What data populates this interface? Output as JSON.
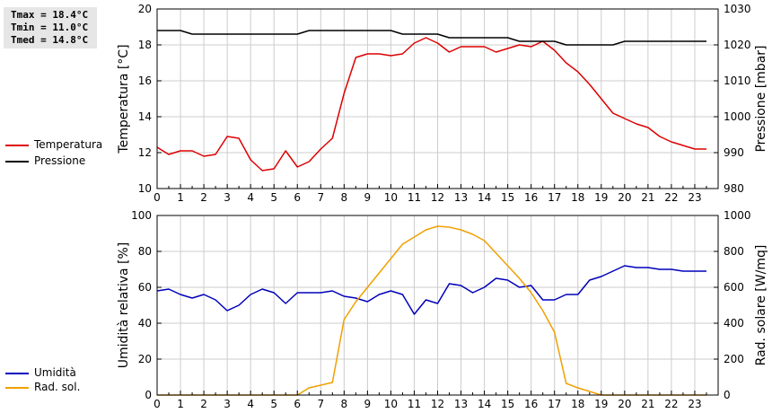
{
  "stats": {
    "tmax": "Tmax = 18.4°C",
    "tmin": "Tmin = 11.0°C",
    "tmed": "Tmed = 14.8°C"
  },
  "legend": {
    "top": [
      {
        "label": "Temperatura",
        "color": "#dd0000"
      },
      {
        "label": "Pressione",
        "color": "#000000"
      }
    ],
    "bottom": [
      {
        "label": "Umidità",
        "color": "#0000bb"
      },
      {
        "label": "Rad. sol.",
        "color": "#f0a000"
      }
    ]
  },
  "chart_data": [
    {
      "type": "line",
      "x_ticks": [
        "0",
        "1",
        "2",
        "3",
        "4",
        "5",
        "6",
        "7",
        "8",
        "9",
        "10",
        "11",
        "12",
        "13",
        "14",
        "15",
        "16",
        "17",
        "18",
        "19",
        "20",
        "21",
        "22",
        "23"
      ],
      "xlim": [
        0,
        24
      ],
      "ylabel": "Temperatura [°C]",
      "ylim": [
        10,
        20
      ],
      "y_ticks": [
        "10",
        "12",
        "14",
        "16",
        "18",
        "20"
      ],
      "y2label": "Pressione [mbar]",
      "y2lim": [
        980,
        1030
      ],
      "y2_ticks": [
        "980",
        "990",
        "1000",
        "1010",
        "1020",
        "1030"
      ],
      "grid": true,
      "series": [
        {
          "name": "Temperatura",
          "axis": "left",
          "color": "#dd0000",
          "x": [
            0,
            0.5,
            1,
            1.5,
            2,
            2.5,
            3,
            3.5,
            4,
            4.5,
            5,
            5.5,
            6,
            6.5,
            7,
            7.5,
            8,
            8.5,
            9,
            9.5,
            10,
            10.5,
            11,
            11.5,
            12,
            12.5,
            13,
            13.5,
            14,
            14.5,
            15,
            15.5,
            16,
            16.5,
            17,
            17.5,
            18,
            18.5,
            19,
            19.5,
            20,
            20.5,
            21,
            21.5,
            22,
            22.5,
            23,
            23.5
          ],
          "y": [
            12.3,
            11.9,
            12.1,
            12.1,
            11.8,
            11.9,
            12.9,
            12.8,
            11.6,
            11.0,
            11.1,
            12.1,
            11.2,
            11.5,
            12.2,
            12.8,
            15.3,
            17.3,
            17.5,
            17.5,
            17.4,
            17.5,
            18.1,
            18.4,
            18.1,
            17.6,
            17.9,
            17.9,
            17.9,
            17.6,
            17.8,
            18.0,
            17.9,
            18.2,
            17.7,
            17.0,
            16.5,
            15.8,
            15.0,
            14.2,
            13.9,
            13.6,
            13.4,
            12.9,
            12.6,
            12.4,
            12.2,
            12.2
          ]
        },
        {
          "name": "Pressione",
          "axis": "right",
          "color": "#000000",
          "x": [
            0,
            1,
            1.5,
            6,
            6.5,
            10,
            10.5,
            12,
            12.5,
            15,
            15.5,
            17,
            17.5,
            19.5,
            20,
            23.5
          ],
          "y": [
            1024,
            1024,
            1023,
            1023,
            1024,
            1024,
            1023,
            1023,
            1022,
            1022,
            1021,
            1021,
            1020,
            1020,
            1021,
            1021
          ]
        }
      ]
    },
    {
      "type": "line",
      "x_ticks": [
        "0",
        "1",
        "2",
        "3",
        "4",
        "5",
        "6",
        "7",
        "8",
        "9",
        "10",
        "11",
        "12",
        "13",
        "14",
        "15",
        "16",
        "17",
        "18",
        "19",
        "20",
        "21",
        "22",
        "23"
      ],
      "xlim": [
        0,
        24
      ],
      "ylabel": "Umidità relativa [%]",
      "ylim": [
        0,
        100
      ],
      "y_ticks": [
        "0",
        "20",
        "40",
        "60",
        "80",
        "100"
      ],
      "y2label": "Rad. solare [W/mq]",
      "y2lim": [
        0,
        1000
      ],
      "y2_ticks": [
        "0",
        "200",
        "400",
        "600",
        "800",
        "1000"
      ],
      "grid": true,
      "series": [
        {
          "name": "Umidità",
          "axis": "left",
          "color": "#0000bb",
          "x": [
            0,
            0.5,
            1,
            1.5,
            2,
            2.5,
            3,
            3.5,
            4,
            4.5,
            5,
            5.5,
            6,
            6.5,
            7,
            7.5,
            8,
            8.5,
            9,
            9.5,
            10,
            10.5,
            11,
            11.5,
            12,
            12.5,
            13,
            13.5,
            14,
            14.5,
            15,
            15.5,
            16,
            16.5,
            17,
            17.5,
            18,
            18.5,
            19,
            19.5,
            20,
            20.5,
            21,
            21.5,
            22,
            22.5,
            23,
            23.5
          ],
          "y": [
            58,
            59,
            56,
            54,
            56,
            53,
            47,
            50,
            56,
            59,
            57,
            51,
            57,
            57,
            57,
            58,
            55,
            54,
            52,
            56,
            58,
            56,
            45,
            53,
            51,
            62,
            61,
            57,
            60,
            65,
            64,
            60,
            61,
            53,
            53,
            56,
            56,
            64,
            66,
            69,
            72,
            71,
            71,
            70,
            70,
            69,
            69,
            69
          ]
        },
        {
          "name": "Rad. sol.",
          "axis": "right",
          "color": "#f0a000",
          "x": [
            0,
            6,
            6.5,
            7,
            7.5,
            8,
            8.5,
            9,
            9.5,
            10,
            10.5,
            11,
            11.5,
            12,
            12.5,
            13,
            13.5,
            14,
            14.5,
            15,
            15.5,
            16,
            16.5,
            17,
            17.5,
            18,
            18.5,
            19,
            23.5
          ],
          "y": [
            0,
            0,
            40,
            55,
            70,
            420,
            520,
            600,
            680,
            760,
            840,
            880,
            920,
            940,
            935,
            920,
            895,
            860,
            790,
            720,
            650,
            570,
            470,
            350,
            65,
            40,
            20,
            0,
            0
          ]
        }
      ]
    }
  ]
}
